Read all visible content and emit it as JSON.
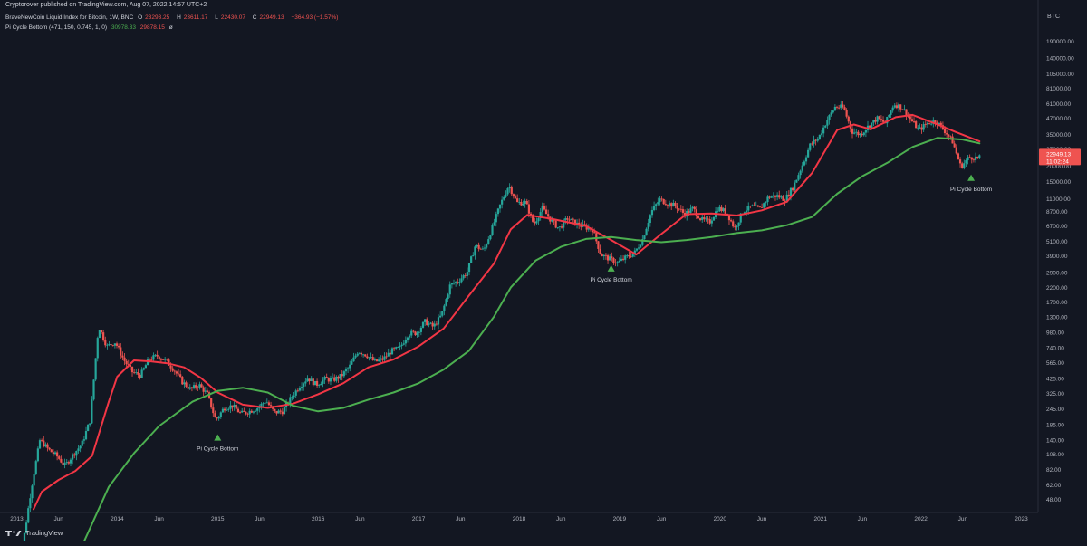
{
  "header": {
    "published_text": "Cryptorover published on TradingView.com, Aug 07, 2022 14:57 UTC+2"
  },
  "legend": {
    "symbol_label": "BraveNewCoin Liquid Index for Bitcoin, 1W, BNC",
    "o_label": "O",
    "o_value": "23293.25",
    "h_label": "H",
    "h_value": "23611.17",
    "l_label": "L",
    "l_value": "22430.07",
    "c_label": "C",
    "c_value": "22949.13",
    "change": "−364.93 (−1.57%)",
    "indicator_label": "Pi Cycle Bottom (471, 150, 0.745, 1, 0)",
    "ind_value_1": "30978.33",
    "ind_value_2": "29878.15",
    "ind_symbol": "ø"
  },
  "axis": {
    "currency": "BTC"
  },
  "price_badge": {
    "price": "22949.13",
    "countdown": "11:02:24"
  },
  "footer": {
    "brand": "TradingView"
  },
  "colors": {
    "up": "#26a69a",
    "down": "#ef5350",
    "green_ma": "#4caf50",
    "red_ma": "#f23645",
    "marker": "#4caf50",
    "background": "#131722"
  },
  "chart_data": {
    "type": "candlestick",
    "title": "BraveNewCoin Liquid Index for Bitcoin, 1W, BNC",
    "yscale": "log",
    "ylim": [
      43,
      350000
    ],
    "xlim": [
      "2012-11",
      "2023-03"
    ],
    "y_ticks": [
      "190000.00",
      "140000.00",
      "105000.00",
      "81000.00",
      "61000.00",
      "47000.00",
      "35000.00",
      "27000.00",
      "20000.00",
      "15000.00",
      "11000.00",
      "8700.00",
      "6700.00",
      "5100.00",
      "3900.00",
      "2900.00",
      "2200.00",
      "1700.00",
      "1300.00",
      "980.00",
      "740.00",
      "565.00",
      "425.00",
      "325.00",
      "245.00",
      "185.00",
      "140.00",
      "108.00",
      "82.00",
      "62.00",
      "48.00"
    ],
    "x_ticks": [
      {
        "label": "2013",
        "date": "2013-01"
      },
      {
        "label": "Jun",
        "date": "2013-06"
      },
      {
        "label": "2014",
        "date": "2014-01"
      },
      {
        "label": "Jun",
        "date": "2014-06"
      },
      {
        "label": "2015",
        "date": "2015-01"
      },
      {
        "label": "Jun",
        "date": "2015-06"
      },
      {
        "label": "2016",
        "date": "2016-01"
      },
      {
        "label": "Jun",
        "date": "2016-06"
      },
      {
        "label": "2017",
        "date": "2017-01"
      },
      {
        "label": "Jun",
        "date": "2017-06"
      },
      {
        "label": "2018",
        "date": "2018-01"
      },
      {
        "label": "Jun",
        "date": "2018-06"
      },
      {
        "label": "2019",
        "date": "2019-01"
      },
      {
        "label": "Jun",
        "date": "2019-06"
      },
      {
        "label": "2020",
        "date": "2020-01"
      },
      {
        "label": "Jun",
        "date": "2020-06"
      },
      {
        "label": "2021",
        "date": "2021-01"
      },
      {
        "label": "Jun",
        "date": "2021-06"
      },
      {
        "label": "2022",
        "date": "2022-01"
      },
      {
        "label": "Jun",
        "date": "2022-06"
      },
      {
        "label": "2023",
        "date": "2023-01"
      }
    ],
    "price_path": [
      {
        "date": "2013-01",
        "p": 13
      },
      {
        "date": "2013-02",
        "p": 22
      },
      {
        "date": "2013-03",
        "p": 60
      },
      {
        "date": "2013-04",
        "p": 140
      },
      {
        "date": "2013-05",
        "p": 118
      },
      {
        "date": "2013-06",
        "p": 105
      },
      {
        "date": "2013-07",
        "p": 88
      },
      {
        "date": "2013-08",
        "p": 108
      },
      {
        "date": "2013-09",
        "p": 130
      },
      {
        "date": "2013-10",
        "p": 200
      },
      {
        "date": "2013-11",
        "p": 1100
      },
      {
        "date": "2013-12",
        "p": 760
      },
      {
        "date": "2014-01",
        "p": 820
      },
      {
        "date": "2014-02",
        "p": 600
      },
      {
        "date": "2014-03",
        "p": 480
      },
      {
        "date": "2014-04",
        "p": 450
      },
      {
        "date": "2014-05",
        "p": 600
      },
      {
        "date": "2014-06",
        "p": 640
      },
      {
        "date": "2014-07",
        "p": 590
      },
      {
        "date": "2014-08",
        "p": 500
      },
      {
        "date": "2014-09",
        "p": 400
      },
      {
        "date": "2014-10",
        "p": 350
      },
      {
        "date": "2014-11",
        "p": 380
      },
      {
        "date": "2014-12",
        "p": 320
      },
      {
        "date": "2015-01",
        "p": 200
      },
      {
        "date": "2015-02",
        "p": 250
      },
      {
        "date": "2015-03",
        "p": 260
      },
      {
        "date": "2015-04",
        "p": 225
      },
      {
        "date": "2015-05",
        "p": 235
      },
      {
        "date": "2015-06",
        "p": 250
      },
      {
        "date": "2015-07",
        "p": 285
      },
      {
        "date": "2015-08",
        "p": 230
      },
      {
        "date": "2015-09",
        "p": 235
      },
      {
        "date": "2015-10",
        "p": 300
      },
      {
        "date": "2015-11",
        "p": 370
      },
      {
        "date": "2015-12",
        "p": 430
      },
      {
        "date": "2016-01",
        "p": 380
      },
      {
        "date": "2016-02",
        "p": 420
      },
      {
        "date": "2016-03",
        "p": 415
      },
      {
        "date": "2016-04",
        "p": 445
      },
      {
        "date": "2016-05",
        "p": 530
      },
      {
        "date": "2016-06",
        "p": 700
      },
      {
        "date": "2016-07",
        "p": 650
      },
      {
        "date": "2016-08",
        "p": 575
      },
      {
        "date": "2016-09",
        "p": 605
      },
      {
        "date": "2016-10",
        "p": 700
      },
      {
        "date": "2016-11",
        "p": 740
      },
      {
        "date": "2016-12",
        "p": 960
      },
      {
        "date": "2017-01",
        "p": 970
      },
      {
        "date": "2017-02",
        "p": 1190
      },
      {
        "date": "2017-03",
        "p": 1080
      },
      {
        "date": "2017-04",
        "p": 1350
      },
      {
        "date": "2017-05",
        "p": 2300
      },
      {
        "date": "2017-06",
        "p": 2500
      },
      {
        "date": "2017-07",
        "p": 2870
      },
      {
        "date": "2017-08",
        "p": 4700
      },
      {
        "date": "2017-09",
        "p": 4300
      },
      {
        "date": "2017-10",
        "p": 6400
      },
      {
        "date": "2017-11",
        "p": 9900
      },
      {
        "date": "2017-12",
        "p": 14000
      },
      {
        "date": "2018-01",
        "p": 10200
      },
      {
        "date": "2018-02",
        "p": 10300
      },
      {
        "date": "2018-03",
        "p": 6900
      },
      {
        "date": "2018-04",
        "p": 9200
      },
      {
        "date": "2018-05",
        "p": 7500
      },
      {
        "date": "2018-06",
        "p": 6400
      },
      {
        "date": "2018-07",
        "p": 7700
      },
      {
        "date": "2018-08",
        "p": 7000
      },
      {
        "date": "2018-09",
        "p": 6600
      },
      {
        "date": "2018-10",
        "p": 6300
      },
      {
        "date": "2018-11",
        "p": 4000
      },
      {
        "date": "2018-12",
        "p": 3700
      },
      {
        "date": "2019-01",
        "p": 3450
      },
      {
        "date": "2019-02",
        "p": 3800
      },
      {
        "date": "2019-03",
        "p": 4100
      },
      {
        "date": "2019-04",
        "p": 5300
      },
      {
        "date": "2019-05",
        "p": 8600
      },
      {
        "date": "2019-06",
        "p": 10800
      },
      {
        "date": "2019-07",
        "p": 10100
      },
      {
        "date": "2019-08",
        "p": 9600
      },
      {
        "date": "2019-09",
        "p": 8300
      },
      {
        "date": "2019-10",
        "p": 9200
      },
      {
        "date": "2019-11",
        "p": 7500
      },
      {
        "date": "2019-12",
        "p": 7200
      },
      {
        "date": "2020-01",
        "p": 9300
      },
      {
        "date": "2020-02",
        "p": 8600
      },
      {
        "date": "2020-03",
        "p": 6400
      },
      {
        "date": "2020-04",
        "p": 8800
      },
      {
        "date": "2020-05",
        "p": 9500
      },
      {
        "date": "2020-06",
        "p": 9100
      },
      {
        "date": "2020-07",
        "p": 11300
      },
      {
        "date": "2020-08",
        "p": 11600
      },
      {
        "date": "2020-09",
        "p": 10800
      },
      {
        "date": "2020-10",
        "p": 13700
      },
      {
        "date": "2020-11",
        "p": 19700
      },
      {
        "date": "2020-12",
        "p": 29000
      },
      {
        "date": "2021-01",
        "p": 33000
      },
      {
        "date": "2021-02",
        "p": 45000
      },
      {
        "date": "2021-03",
        "p": 58000
      },
      {
        "date": "2021-04",
        "p": 57000
      },
      {
        "date": "2021-05",
        "p": 37000
      },
      {
        "date": "2021-06",
        "p": 35000
      },
      {
        "date": "2021-07",
        "p": 41000
      },
      {
        "date": "2021-08",
        "p": 47000
      },
      {
        "date": "2021-09",
        "p": 43000
      },
      {
        "date": "2021-10",
        "p": 61000
      },
      {
        "date": "2021-11",
        "p": 57000
      },
      {
        "date": "2021-12",
        "p": 46000
      },
      {
        "date": "2022-01",
        "p": 38000
      },
      {
        "date": "2022-02",
        "p": 43000
      },
      {
        "date": "2022-03",
        "p": 45000
      },
      {
        "date": "2022-04",
        "p": 38000
      },
      {
        "date": "2022-05",
        "p": 31000
      },
      {
        "date": "2022-06",
        "p": 19500
      },
      {
        "date": "2022-07",
        "p": 23300
      },
      {
        "date": "2022-08",
        "p": 22949
      }
    ],
    "series": [
      {
        "name": "Pi Cycle Bottom (471, 150, 0.745, 1, 0)",
        "color": "#f23645",
        "points": [
          {
            "date": "2013-03",
            "p": 40
          },
          {
            "date": "2013-04",
            "p": 55
          },
          {
            "date": "2013-06",
            "p": 68
          },
          {
            "date": "2013-08",
            "p": 80
          },
          {
            "date": "2013-10",
            "p": 105
          },
          {
            "date": "2013-12",
            "p": 280
          },
          {
            "date": "2014-01",
            "p": 440
          },
          {
            "date": "2014-03",
            "p": 590
          },
          {
            "date": "2014-05",
            "p": 580
          },
          {
            "date": "2014-07",
            "p": 560
          },
          {
            "date": "2014-09",
            "p": 520
          },
          {
            "date": "2014-11",
            "p": 430
          },
          {
            "date": "2015-01",
            "p": 330
          },
          {
            "date": "2015-04",
            "p": 265
          },
          {
            "date": "2015-07",
            "p": 250
          },
          {
            "date": "2015-10",
            "p": 270
          },
          {
            "date": "2016-01",
            "p": 320
          },
          {
            "date": "2016-04",
            "p": 390
          },
          {
            "date": "2016-07",
            "p": 520
          },
          {
            "date": "2016-10",
            "p": 600
          },
          {
            "date": "2017-01",
            "p": 760
          },
          {
            "date": "2017-04",
            "p": 1050
          },
          {
            "date": "2017-07",
            "p": 1900
          },
          {
            "date": "2017-10",
            "p": 3400
          },
          {
            "date": "2017-12",
            "p": 6300
          },
          {
            "date": "2018-02",
            "p": 8200
          },
          {
            "date": "2018-05",
            "p": 7600
          },
          {
            "date": "2018-09",
            "p": 6700
          },
          {
            "date": "2018-12",
            "p": 5200
          },
          {
            "date": "2019-03",
            "p": 4000
          },
          {
            "date": "2019-06",
            "p": 5800
          },
          {
            "date": "2019-09",
            "p": 8300
          },
          {
            "date": "2019-12",
            "p": 8400
          },
          {
            "date": "2020-03",
            "p": 8100
          },
          {
            "date": "2020-06",
            "p": 8900
          },
          {
            "date": "2020-09",
            "p": 10400
          },
          {
            "date": "2020-12",
            "p": 17500
          },
          {
            "date": "2021-03",
            "p": 38000
          },
          {
            "date": "2021-05",
            "p": 42000
          },
          {
            "date": "2021-07",
            "p": 38500
          },
          {
            "date": "2021-10",
            "p": 48000
          },
          {
            "date": "2021-12",
            "p": 50000
          },
          {
            "date": "2022-03",
            "p": 42000
          },
          {
            "date": "2022-05",
            "p": 37000
          },
          {
            "date": "2022-08",
            "p": 30978
          }
        ]
      },
      {
        "name": "",
        "color": "#4caf50",
        "points": [
          {
            "date": "2013-06",
            "p": 12
          },
          {
            "date": "2013-09",
            "p": 22
          },
          {
            "date": "2013-12",
            "p": 60
          },
          {
            "date": "2014-03",
            "p": 110
          },
          {
            "date": "2014-06",
            "p": 180
          },
          {
            "date": "2014-10",
            "p": 280
          },
          {
            "date": "2015-01",
            "p": 340
          },
          {
            "date": "2015-04",
            "p": 360
          },
          {
            "date": "2015-07",
            "p": 330
          },
          {
            "date": "2015-10",
            "p": 260
          },
          {
            "date": "2016-01",
            "p": 235
          },
          {
            "date": "2016-04",
            "p": 250
          },
          {
            "date": "2016-07",
            "p": 290
          },
          {
            "date": "2016-10",
            "p": 330
          },
          {
            "date": "2017-01",
            "p": 390
          },
          {
            "date": "2017-04",
            "p": 500
          },
          {
            "date": "2017-07",
            "p": 700
          },
          {
            "date": "2017-10",
            "p": 1300
          },
          {
            "date": "2017-12",
            "p": 2200
          },
          {
            "date": "2018-03",
            "p": 3600
          },
          {
            "date": "2018-06",
            "p": 4600
          },
          {
            "date": "2018-09",
            "p": 5300
          },
          {
            "date": "2018-12",
            "p": 5500
          },
          {
            "date": "2019-03",
            "p": 5200
          },
          {
            "date": "2019-06",
            "p": 5000
          },
          {
            "date": "2019-09",
            "p": 5200
          },
          {
            "date": "2019-12",
            "p": 5500
          },
          {
            "date": "2020-03",
            "p": 5900
          },
          {
            "date": "2020-06",
            "p": 6200
          },
          {
            "date": "2020-09",
            "p": 6800
          },
          {
            "date": "2020-12",
            "p": 7900
          },
          {
            "date": "2021-03",
            "p": 12000
          },
          {
            "date": "2021-06",
            "p": 16500
          },
          {
            "date": "2021-09",
            "p": 21000
          },
          {
            "date": "2021-12",
            "p": 28000
          },
          {
            "date": "2022-03",
            "p": 33000
          },
          {
            "date": "2022-06",
            "p": 32000
          },
          {
            "date": "2022-08",
            "p": 29878
          }
        ]
      }
    ],
    "annotations": [
      {
        "text": "Pi Cycle Bottom",
        "date": "2015-01",
        "p": 155
      },
      {
        "text": "Pi Cycle Bottom",
        "date": "2018-12",
        "p": 3300
      },
      {
        "text": "Pi Cycle Bottom",
        "date": "2022-07",
        "p": 17000
      }
    ]
  }
}
